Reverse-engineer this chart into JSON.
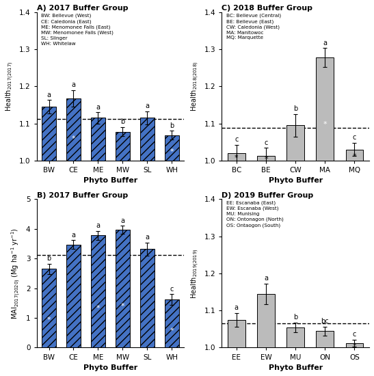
{
  "panel_A": {
    "title": "A) 2017 Buffer Group",
    "categories": [
      "BW",
      "CE",
      "ME",
      "MW",
      "SL",
      "WH"
    ],
    "values": [
      1.145,
      1.168,
      1.115,
      1.078,
      1.115,
      1.068
    ],
    "errors": [
      0.018,
      0.022,
      0.015,
      0.012,
      0.018,
      0.012
    ],
    "letters": [
      "a",
      "a",
      "a",
      "b",
      "a",
      "b"
    ],
    "stars": [
      false,
      true,
      false,
      false,
      false,
      true
    ],
    "star_colors": [
      "white",
      "white",
      "white",
      "white",
      "white",
      "white"
    ],
    "dashed_line": 1.112,
    "ylabel": "Health$_{2017(2017)}$",
    "xlabel": "Phyto Buffer",
    "ylim": [
      1.0,
      1.4
    ],
    "yticks": [
      1.0,
      1.1,
      1.2,
      1.3,
      1.4
    ],
    "legend": [
      "BW: Bellevue (West)",
      "CE: Caledonia (East)",
      "ME: Menomonee Falls (East)",
      "MW: Menomonee Falls (West)",
      "SL: Slinger",
      "WH: Whitelaw"
    ],
    "bar_color": "#4472C4",
    "hatch": "///",
    "bar_bottom": 1.0
  },
  "panel_B": {
    "title": "B) 2017 Buffer Group",
    "categories": [
      "BW",
      "CE",
      "ME",
      "MW",
      "SL",
      "WH"
    ],
    "values": [
      2.65,
      3.47,
      3.78,
      3.97,
      3.32,
      1.62
    ],
    "errors": [
      0.18,
      0.15,
      0.15,
      0.13,
      0.22,
      0.18
    ],
    "letters": [
      "b",
      "a",
      "a",
      "a",
      "a",
      "c"
    ],
    "stars": [
      true,
      false,
      true,
      true,
      false,
      true
    ],
    "star_colors": [
      "white",
      "white",
      "white",
      "white",
      "white",
      "white"
    ],
    "dashed_line": 3.13,
    "ylabel": "MAI$_{2017(2020)}$ (Mg ha$^{-1}$ yr$^{-1}$)",
    "xlabel": "Phyto Buffer",
    "ylim": [
      0,
      5
    ],
    "yticks": [
      0,
      1,
      2,
      3,
      4,
      5
    ],
    "bar_color": "#4472C4",
    "hatch": "///",
    "bar_bottom": 0
  },
  "panel_C": {
    "title": "C) 2018 Buffer Group",
    "categories": [
      "BC",
      "BE",
      "CW",
      "MA",
      "MQ"
    ],
    "values": [
      1.02,
      1.012,
      1.095,
      1.278,
      1.03
    ],
    "errors": [
      0.022,
      0.022,
      0.03,
      0.025,
      0.018
    ],
    "letters": [
      "c",
      "c",
      "b",
      "a",
      "c"
    ],
    "stars": [
      true,
      true,
      false,
      true,
      true
    ],
    "star_colors": [
      "black",
      "black",
      "black",
      "white",
      "black"
    ],
    "dashed_line": 1.088,
    "ylabel": "Health$_{2018(2018)}$",
    "xlabel": "Phyto Buffer",
    "ylim": [
      1.0,
      1.4
    ],
    "yticks": [
      1.0,
      1.1,
      1.2,
      1.3,
      1.4
    ],
    "legend": [
      "BC: Bellevue (Central)",
      "BE: Bellevue (East)",
      "CW: Caledonia (West)",
      "MA: Manitowoc",
      "MQ: Marquette"
    ],
    "bar_color": "#BBBBBB",
    "hatch": "",
    "bar_bottom": 1.0
  },
  "panel_D": {
    "title": "D) 2019 Buffer Group",
    "categories": [
      "EE",
      "EW",
      "MU",
      "ON",
      "OS"
    ],
    "values": [
      1.075,
      1.145,
      1.055,
      1.045,
      1.012
    ],
    "errors": [
      0.018,
      0.028,
      0.013,
      0.012,
      0.01
    ],
    "letters": [
      "a",
      "a",
      "b",
      "bc",
      "c"
    ],
    "stars": [
      false,
      false,
      false,
      false,
      true
    ],
    "star_colors": [
      "black",
      "black",
      "black",
      "black",
      "black"
    ],
    "dashed_line": 1.065,
    "ylabel": "Health$_{2019(2019)}$",
    "xlabel": "Phyto Buffer",
    "ylim": [
      1.0,
      1.4
    ],
    "yticks": [
      1.0,
      1.1,
      1.2,
      1.3,
      1.4
    ],
    "legend": [
      "EE: Escanaba (East)",
      "EW: Escanaba (West)",
      "MU: Munising",
      "ON: Ontonagon (North)",
      "OS: Ontaogon (South)"
    ],
    "bar_color": "#BBBBBB",
    "hatch": "",
    "bar_bottom": 1.0
  }
}
